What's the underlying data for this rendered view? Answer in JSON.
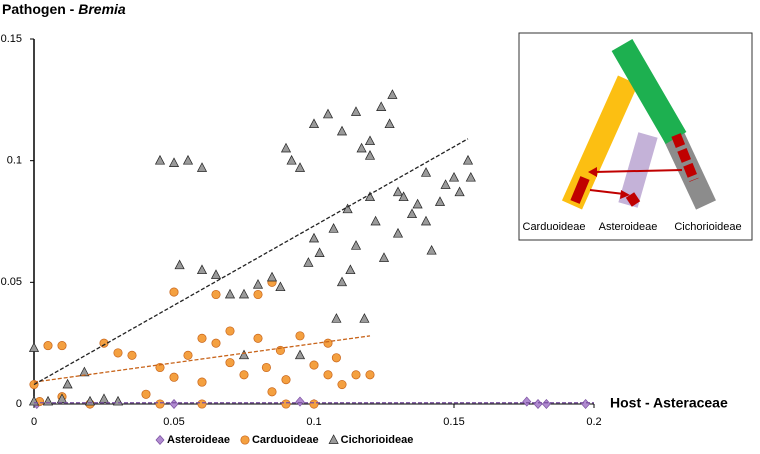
{
  "chart_data": {
    "type": "scatter",
    "title": "Pathogen - ",
    "title_italic": "Bremia",
    "x_label": "Host - Asteraceae",
    "xlim": [
      0,
      0.2
    ],
    "xticks": [
      0,
      0.05,
      0.1,
      0.15,
      0.2
    ],
    "ylim": [
      0,
      0.15
    ],
    "yticks": [
      0,
      0.05,
      0.1,
      0.15
    ],
    "grid": false,
    "legend": "bottom",
    "series": [
      {
        "name": "Asteroideae",
        "color": "#b08bd0",
        "marker": "diamond",
        "x": [
          0.001,
          0.02,
          0.05,
          0.095,
          0.1,
          0.176,
          0.18,
          0.183,
          0.197
        ],
        "values": [
          0,
          0,
          0,
          0.001,
          0,
          0.001,
          0,
          0,
          0
        ],
        "trend": {
          "x": [
            0,
            0.2
          ],
          "y": [
            0.0005,
            0.0005
          ]
        }
      },
      {
        "name": "Carduoideae",
        "color": "#f4a040",
        "marker": "circle",
        "x": [
          0.005,
          0.01,
          0.025,
          0.03,
          0.035,
          0.045,
          0.05,
          0.055,
          0.06,
          0.065,
          0.07,
          0.07,
          0.075,
          0.08,
          0.083,
          0.085,
          0.088,
          0.09,
          0.095,
          0.1,
          0.105,
          0.105,
          0.108,
          0.11,
          0.115,
          0.12,
          0.065,
          0.08,
          0.06,
          0.05,
          0,
          0.01,
          0.002,
          0.045,
          0.06,
          0.09,
          0.1,
          0.085,
          0.04,
          0.02
        ],
        "values": [
          0.024,
          0.024,
          0.025,
          0.021,
          0.02,
          0.015,
          0.046,
          0.02,
          0.027,
          0.025,
          0.03,
          0.017,
          0.012,
          0.027,
          0.015,
          0.05,
          0.022,
          0.01,
          0.028,
          0.016,
          0.012,
          0.025,
          0.019,
          0.008,
          0.012,
          0.012,
          0.045,
          0.045,
          0.009,
          0.011,
          0.008,
          0.003,
          0.001,
          0,
          0,
          0,
          0,
          0.005,
          0.004,
          0
        ],
        "trend": {
          "x": [
            0,
            0.12
          ],
          "y": [
            0.009,
            0.028
          ]
        }
      },
      {
        "name": "Cichorioideae",
        "color": "#9a9a9a",
        "marker": "triangle",
        "x": [
          0.045,
          0.05,
          0.055,
          0.06,
          0.06,
          0.065,
          0.07,
          0.075,
          0.08,
          0.085,
          0.088,
          0.09,
          0.092,
          0.095,
          0.098,
          0.1,
          0.1,
          0.102,
          0.105,
          0.107,
          0.11,
          0.11,
          0.112,
          0.113,
          0.115,
          0.115,
          0.117,
          0.12,
          0.12,
          0.122,
          0.124,
          0.125,
          0.127,
          0.13,
          0.13,
          0.132,
          0.135,
          0.137,
          0.14,
          0.14,
          0.142,
          0.145,
          0.147,
          0.15,
          0.152,
          0.155,
          0.156,
          0.052,
          0.118,
          0.108,
          0.075,
          0.095,
          0.018,
          0.03,
          0.01,
          0,
          0,
          0.005,
          0.02,
          0.012,
          0.025,
          0.128,
          0.12
        ],
        "values": [
          0.1,
          0.099,
          0.1,
          0.097,
          0.055,
          0.053,
          0.045,
          0.045,
          0.049,
          0.052,
          0.048,
          0.105,
          0.1,
          0.097,
          0.058,
          0.068,
          0.115,
          0.062,
          0.119,
          0.072,
          0.05,
          0.112,
          0.08,
          0.055,
          0.12,
          0.065,
          0.105,
          0.108,
          0.085,
          0.075,
          0.122,
          0.06,
          0.115,
          0.087,
          0.07,
          0.085,
          0.078,
          0.082,
          0.095,
          0.075,
          0.063,
          0.083,
          0.09,
          0.093,
          0.087,
          0.1,
          0.093,
          0.057,
          0.035,
          0.035,
          0.02,
          0.02,
          0.013,
          0.001,
          0.002,
          0.023,
          0.001,
          0.001,
          0.001,
          0.008,
          0.002,
          0.127,
          0.102
        ],
        "trend": {
          "x": [
            0,
            0.155
          ],
          "y": [
            0.008,
            0.109
          ]
        }
      }
    ],
    "inset_labels": [
      "Carduoideae",
      "Asteroideae",
      "Cichorioideae"
    ]
  }
}
